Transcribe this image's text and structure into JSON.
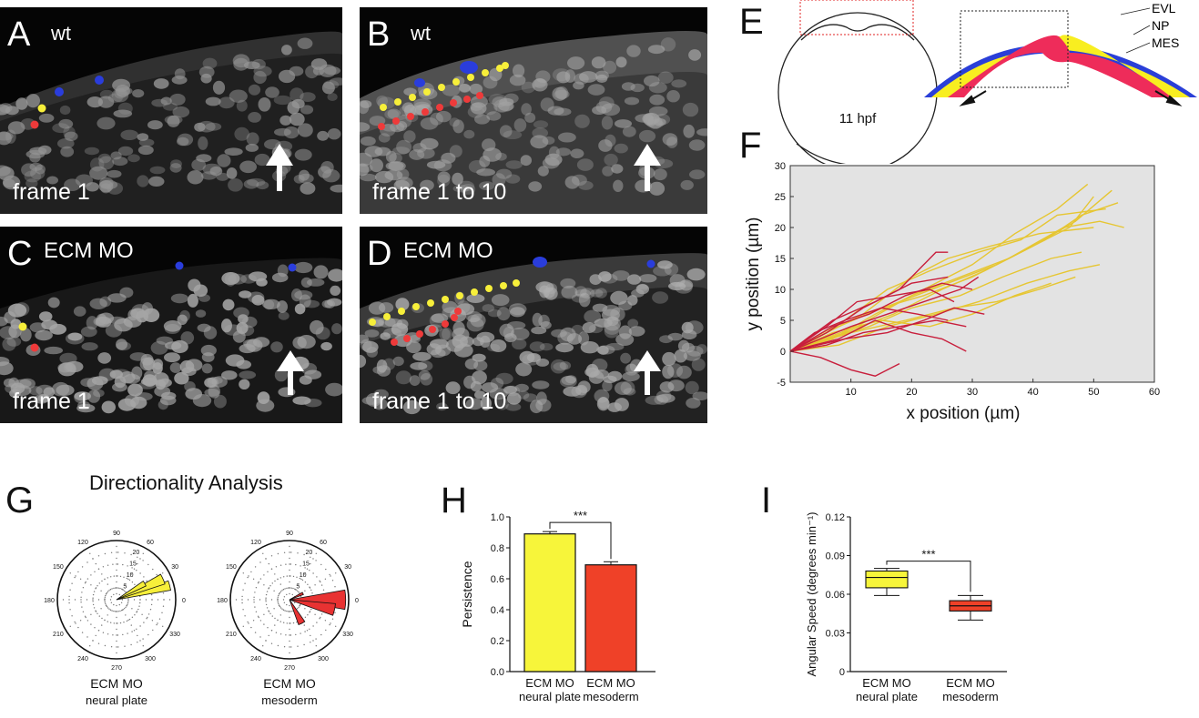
{
  "panels": {
    "A": {
      "letter": "A",
      "condition": "wt",
      "frame": "frame 1"
    },
    "B": {
      "letter": "B",
      "condition": "wt",
      "frame": "frame 1 to 10"
    },
    "C": {
      "letter": "C",
      "condition": "ECM MO",
      "frame": "frame 1"
    },
    "D": {
      "letter": "D",
      "condition": "ECM MO",
      "frame": "frame 1 to 10"
    },
    "E": {
      "letter": "E",
      "stage": "11 hpf",
      "layers": [
        "EVL",
        "NP",
        "MES"
      ]
    },
    "F": {
      "letter": "F"
    },
    "G": {
      "letter": "G",
      "title": "Directionality Analysis",
      "labels": [
        {
          "line1": "ECM MO",
          "line2": "neural plate"
        },
        {
          "line1": "ECM MO",
          "line2": "mesoderm"
        }
      ],
      "angle_labels": [
        "90",
        "60",
        "30",
        "0",
        "330",
        "300",
        "270",
        "240",
        "210",
        "180",
        "150",
        "120"
      ],
      "radial_labels": [
        "20",
        "15",
        "10",
        "5"
      ]
    },
    "H": {
      "letter": "H"
    },
    "I": {
      "letter": "I"
    }
  },
  "colors": {
    "yellow": "#f7ef3a",
    "red": "#ee3a3a",
    "blue": "#2a3ddc",
    "track_yellow": "#e6c632",
    "track_red": "#c81e3c",
    "mes": "#ee2c5a",
    "np": "#f8ee20",
    "evl": "#2a3fd8"
  },
  "chart_data": [
    {
      "id": "F",
      "type": "line",
      "xlabel": "x position (µm)",
      "ylabel": "y position (µm)",
      "xlim": [
        0,
        60
      ],
      "ylim": [
        -5,
        30
      ],
      "xticks": [
        "10",
        "20",
        "30",
        "40",
        "50",
        "60"
      ],
      "yticks": [
        "-5",
        "0",
        "5",
        "10",
        "15",
        "20",
        "25",
        "30"
      ],
      "series": [
        {
          "color": "#e6c632",
          "points": [
            [
              0,
              0
            ],
            [
              8,
              4
            ],
            [
              15,
              7
            ],
            [
              22,
              9
            ],
            [
              30,
              12
            ],
            [
              38,
              16
            ],
            [
              46,
              20
            ],
            [
              50,
              25
            ]
          ]
        },
        {
          "color": "#e6c632",
          "points": [
            [
              0,
              0
            ],
            [
              10,
              5
            ],
            [
              18,
              8
            ],
            [
              26,
              11
            ],
            [
              34,
              14
            ],
            [
              42,
              18
            ],
            [
              48,
              22
            ],
            [
              54,
              24
            ]
          ]
        },
        {
          "color": "#e6c632",
          "points": [
            [
              0,
              0
            ],
            [
              9,
              3
            ],
            [
              17,
              6
            ],
            [
              25,
              10
            ],
            [
              32,
              13
            ],
            [
              40,
              17
            ],
            [
              47,
              21
            ],
            [
              53,
              26
            ]
          ]
        },
        {
          "color": "#e6c632",
          "points": [
            [
              0,
              0
            ],
            [
              7,
              2
            ],
            [
              14,
              6
            ],
            [
              22,
              10
            ],
            [
              30,
              14
            ],
            [
              37,
              19
            ],
            [
              44,
              23
            ],
            [
              49,
              27
            ]
          ]
        },
        {
          "color": "#e6c632",
          "points": [
            [
              0,
              0
            ],
            [
              11,
              4
            ],
            [
              20,
              9
            ],
            [
              28,
              12
            ],
            [
              36,
              15
            ],
            [
              45,
              20
            ],
            [
              51,
              21
            ],
            [
              55,
              20
            ]
          ]
        },
        {
          "color": "#e6c632",
          "points": [
            [
              0,
              0
            ],
            [
              8,
              1
            ],
            [
              16,
              4
            ],
            [
              24,
              6
            ],
            [
              31,
              8
            ],
            [
              39,
              11
            ],
            [
              46,
              13
            ],
            [
              51,
              14
            ]
          ]
        },
        {
          "color": "#e6c632",
          "points": [
            [
              0,
              0
            ],
            [
              10,
              3
            ],
            [
              19,
              5
            ],
            [
              27,
              7
            ],
            [
              34,
              8
            ],
            [
              41,
              10
            ],
            [
              47,
              12
            ]
          ]
        },
        {
          "color": "#e6c632",
          "points": [
            [
              0,
              0
            ],
            [
              6,
              2
            ],
            [
              13,
              4
            ],
            [
              20,
              7
            ],
            [
              28,
              9
            ],
            [
              35,
              12
            ],
            [
              43,
              15
            ],
            [
              48,
              16
            ]
          ]
        },
        {
          "color": "#e6c632",
          "points": [
            [
              0,
              0
            ],
            [
              9,
              5
            ],
            [
              16,
              10
            ],
            [
              23,
              13
            ],
            [
              31,
              16
            ],
            [
              38,
              18
            ],
            [
              44,
              22
            ],
            [
              52,
              23
            ]
          ]
        },
        {
          "color": "#e6c632",
          "points": [
            [
              0,
              0
            ],
            [
              7,
              3
            ],
            [
              15,
              5
            ],
            [
              23,
              4
            ],
            [
              30,
              6
            ],
            [
              37,
              9
            ],
            [
              43,
              11
            ]
          ]
        },
        {
          "color": "#e6c632",
          "points": [
            [
              0,
              0
            ],
            [
              12,
              6
            ],
            [
              20,
              12
            ],
            [
              26,
              15
            ],
            [
              33,
              17
            ],
            [
              41,
              19
            ],
            [
              50,
              20
            ]
          ]
        },
        {
          "color": "#c81e3c",
          "points": [
            [
              0,
              0
            ],
            [
              6,
              3
            ],
            [
              12,
              7
            ],
            [
              18,
              10
            ],
            [
              22,
              14
            ],
            [
              24,
              16
            ],
            [
              26,
              16
            ]
          ]
        },
        {
          "color": "#c81e3c",
          "points": [
            [
              0,
              0
            ],
            [
              5,
              2
            ],
            [
              10,
              4
            ],
            [
              16,
              6
            ],
            [
              22,
              8
            ],
            [
              28,
              10
            ],
            [
              31,
              12
            ]
          ]
        },
        {
          "color": "#c81e3c",
          "points": [
            [
              0,
              0
            ],
            [
              7,
              4
            ],
            [
              13,
              6
            ],
            [
              19,
              9
            ],
            [
              25,
              11
            ],
            [
              30,
              10
            ]
          ]
        },
        {
          "color": "#c81e3c",
          "points": [
            [
              0,
              0
            ],
            [
              6,
              1
            ],
            [
              12,
              3
            ],
            [
              18,
              4
            ],
            [
              24,
              5
            ],
            [
              29,
              4
            ]
          ]
        },
        {
          "color": "#c81e3c",
          "points": [
            [
              0,
              0
            ],
            [
              8,
              2
            ],
            [
              14,
              5
            ],
            [
              20,
              3
            ],
            [
              25,
              2
            ],
            [
              29,
              0
            ]
          ]
        },
        {
          "color": "#c81e3c",
          "points": [
            [
              0,
              0
            ],
            [
              5,
              -1
            ],
            [
              10,
              -3
            ],
            [
              14,
              -4
            ],
            [
              18,
              -2
            ]
          ]
        },
        {
          "color": "#c81e3c",
          "points": [
            [
              0,
              0
            ],
            [
              7,
              5
            ],
            [
              14,
              8
            ],
            [
              20,
              11
            ],
            [
              26,
              12
            ]
          ]
        },
        {
          "color": "#c81e3c",
          "points": [
            [
              0,
              0
            ],
            [
              9,
              2
            ],
            [
              16,
              3
            ],
            [
              22,
              5
            ],
            [
              27,
              7
            ],
            [
              32,
              6
            ]
          ]
        },
        {
          "color": "#c81e3c",
          "points": [
            [
              0,
              0
            ],
            [
              6,
              4
            ],
            [
              11,
              8
            ],
            [
              17,
              9
            ],
            [
              23,
              10
            ],
            [
              27,
              8
            ]
          ]
        },
        {
          "color": "#c81e3c",
          "points": [
            [
              0,
              0
            ],
            [
              4,
              3
            ],
            [
              9,
              5
            ],
            [
              15,
              7
            ],
            [
              21,
              6
            ],
            [
              26,
              5
            ]
          ]
        }
      ]
    },
    {
      "id": "H",
      "type": "bar",
      "categories": [
        {
          "line1": "ECM MO",
          "line2": "neural plate"
        },
        {
          "line1": "ECM MO",
          "line2": "mesoderm"
        }
      ],
      "values": [
        0.89,
        0.69
      ],
      "errors": [
        0.015,
        0.02
      ],
      "colors": [
        "#f7f53a",
        "#ef4128"
      ],
      "ylabel": "Persistence",
      "ylim": [
        0,
        1.0
      ],
      "yticks": [
        "0.0",
        "0.2",
        "0.4",
        "0.6",
        "0.8",
        "1.0"
      ],
      "significance": "***"
    },
    {
      "id": "I",
      "type": "box",
      "categories": [
        {
          "line1": "ECM MO",
          "line2": "neural plate"
        },
        {
          "line1": "ECM MO",
          "line2": "mesoderm"
        }
      ],
      "boxes": [
        {
          "min": 0.059,
          "q1": 0.065,
          "median": 0.073,
          "q3": 0.078,
          "max": 0.08,
          "color": "#f7f53a"
        },
        {
          "min": 0.04,
          "q1": 0.047,
          "median": 0.051,
          "q3": 0.055,
          "max": 0.059,
          "color": "#ef4128"
        }
      ],
      "ylabel": "Angular Speed (degrees min⁻¹)",
      "ylim": [
        0,
        0.12
      ],
      "yticks": [
        "0",
        "0.03",
        "0.06",
        "0.09",
        "0.12"
      ],
      "significance": "***"
    }
  ]
}
